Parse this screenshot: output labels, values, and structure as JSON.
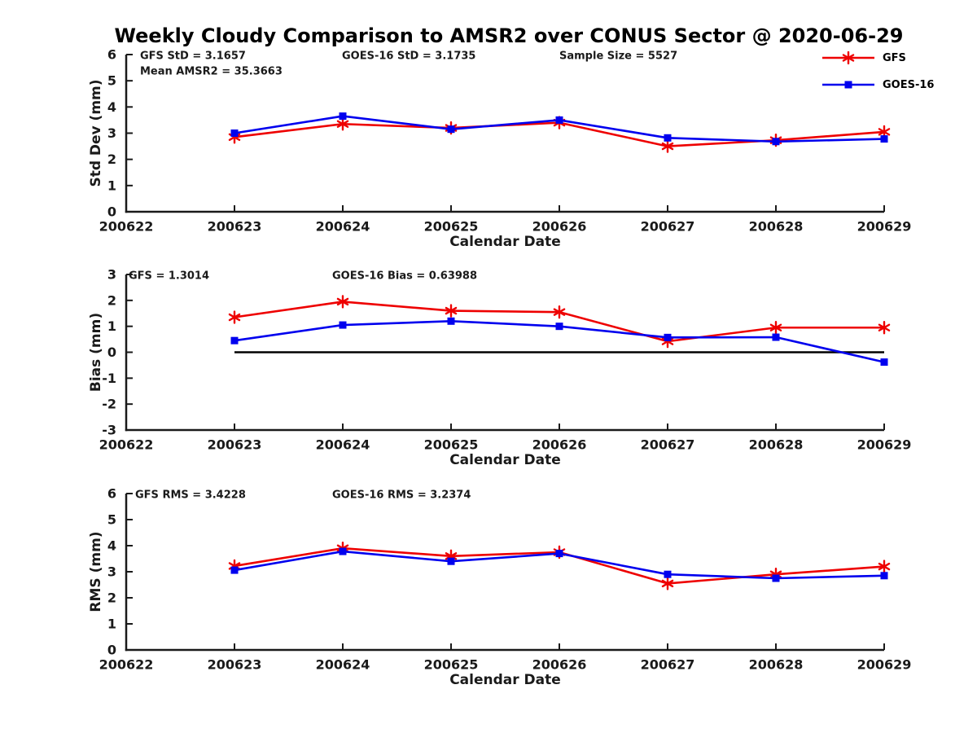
{
  "title": "Weekly Cloudy Comparison to AMSR2 over CONUS Sector @ 2020-06-29",
  "legend": {
    "entries": [
      {
        "name": "GFS",
        "color": "#ee0000",
        "marker": "asterisk"
      },
      {
        "name": "GOES-16",
        "color": "#0000ee",
        "marker": "square"
      }
    ]
  },
  "chart_data": [
    {
      "type": "line",
      "id": "stddev",
      "ylabel": "Std Dev (mm)",
      "xlabel": "Calendar Date",
      "x_categories": [
        "200622",
        "200623",
        "200624",
        "200625",
        "200626",
        "200627",
        "200628",
        "200629"
      ],
      "ylim": [
        0,
        6
      ],
      "yticks": [
        0,
        1,
        2,
        3,
        4,
        5,
        6
      ],
      "grid": false,
      "legend_position": "outside-top-right",
      "annotations": [
        "GFS StD = 3.1657",
        "Mean AMSR2 = 35.3663",
        "GOES-16 StD = 3.1735",
        "Sample Size = 5527"
      ],
      "series": [
        {
          "name": "GFS",
          "color": "#ee0000",
          "marker": "asterisk",
          "x": [
            "200623",
            "200624",
            "200625",
            "200626",
            "200627",
            "200628",
            "200629"
          ],
          "values": [
            2.85,
            3.35,
            3.2,
            3.4,
            2.5,
            2.73,
            3.05
          ]
        },
        {
          "name": "GOES-16",
          "color": "#0000ee",
          "marker": "square",
          "x": [
            "200623",
            "200624",
            "200625",
            "200626",
            "200627",
            "200628",
            "200629"
          ],
          "values": [
            3.0,
            3.65,
            3.15,
            3.5,
            2.82,
            2.68,
            2.78
          ]
        }
      ]
    },
    {
      "type": "line",
      "id": "bias",
      "ylabel": "Bias (mm)",
      "xlabel": "Calendar Date",
      "x_categories": [
        "200622",
        "200623",
        "200624",
        "200625",
        "200626",
        "200627",
        "200628",
        "200629"
      ],
      "ylim": [
        -3,
        3
      ],
      "yticks": [
        -3,
        -2,
        -1,
        0,
        1,
        2,
        3
      ],
      "grid": false,
      "zero_line": true,
      "annotations": [
        "GFS = 1.3014",
        "GOES-16 Bias  = 0.63988"
      ],
      "series": [
        {
          "name": "GFS",
          "color": "#ee0000",
          "marker": "asterisk",
          "x": [
            "200623",
            "200624",
            "200625",
            "200626",
            "200627",
            "200628",
            "200629"
          ],
          "values": [
            1.35,
            1.95,
            1.6,
            1.55,
            0.42,
            0.95,
            0.95
          ]
        },
        {
          "name": "GOES-16",
          "color": "#0000ee",
          "marker": "square",
          "x": [
            "200623",
            "200624",
            "200625",
            "200626",
            "200627",
            "200628",
            "200629"
          ],
          "values": [
            0.45,
            1.05,
            1.2,
            1.0,
            0.57,
            0.58,
            -0.38
          ]
        }
      ]
    },
    {
      "type": "line",
      "id": "rms",
      "ylabel": "RMS (mm)",
      "xlabel": "Calendar Date",
      "x_categories": [
        "200622",
        "200623",
        "200624",
        "200625",
        "200626",
        "200627",
        "200628",
        "200629"
      ],
      "ylim": [
        0,
        6
      ],
      "yticks": [
        0,
        1,
        2,
        3,
        4,
        5,
        6
      ],
      "grid": false,
      "annotations": [
        "GFS RMS = 3.4228",
        "GOES-16 RMS = 3.2374"
      ],
      "series": [
        {
          "name": "GFS",
          "color": "#ee0000",
          "marker": "asterisk",
          "x": [
            "200623",
            "200624",
            "200625",
            "200626",
            "200627",
            "200628",
            "200629"
          ],
          "values": [
            3.22,
            3.9,
            3.6,
            3.75,
            2.55,
            2.9,
            3.2
          ]
        },
        {
          "name": "GOES-16",
          "color": "#0000ee",
          "marker": "square",
          "x": [
            "200623",
            "200624",
            "200625",
            "200626",
            "200627",
            "200628",
            "200629"
          ],
          "values": [
            3.06,
            3.78,
            3.4,
            3.7,
            2.9,
            2.75,
            2.85
          ]
        }
      ]
    }
  ]
}
